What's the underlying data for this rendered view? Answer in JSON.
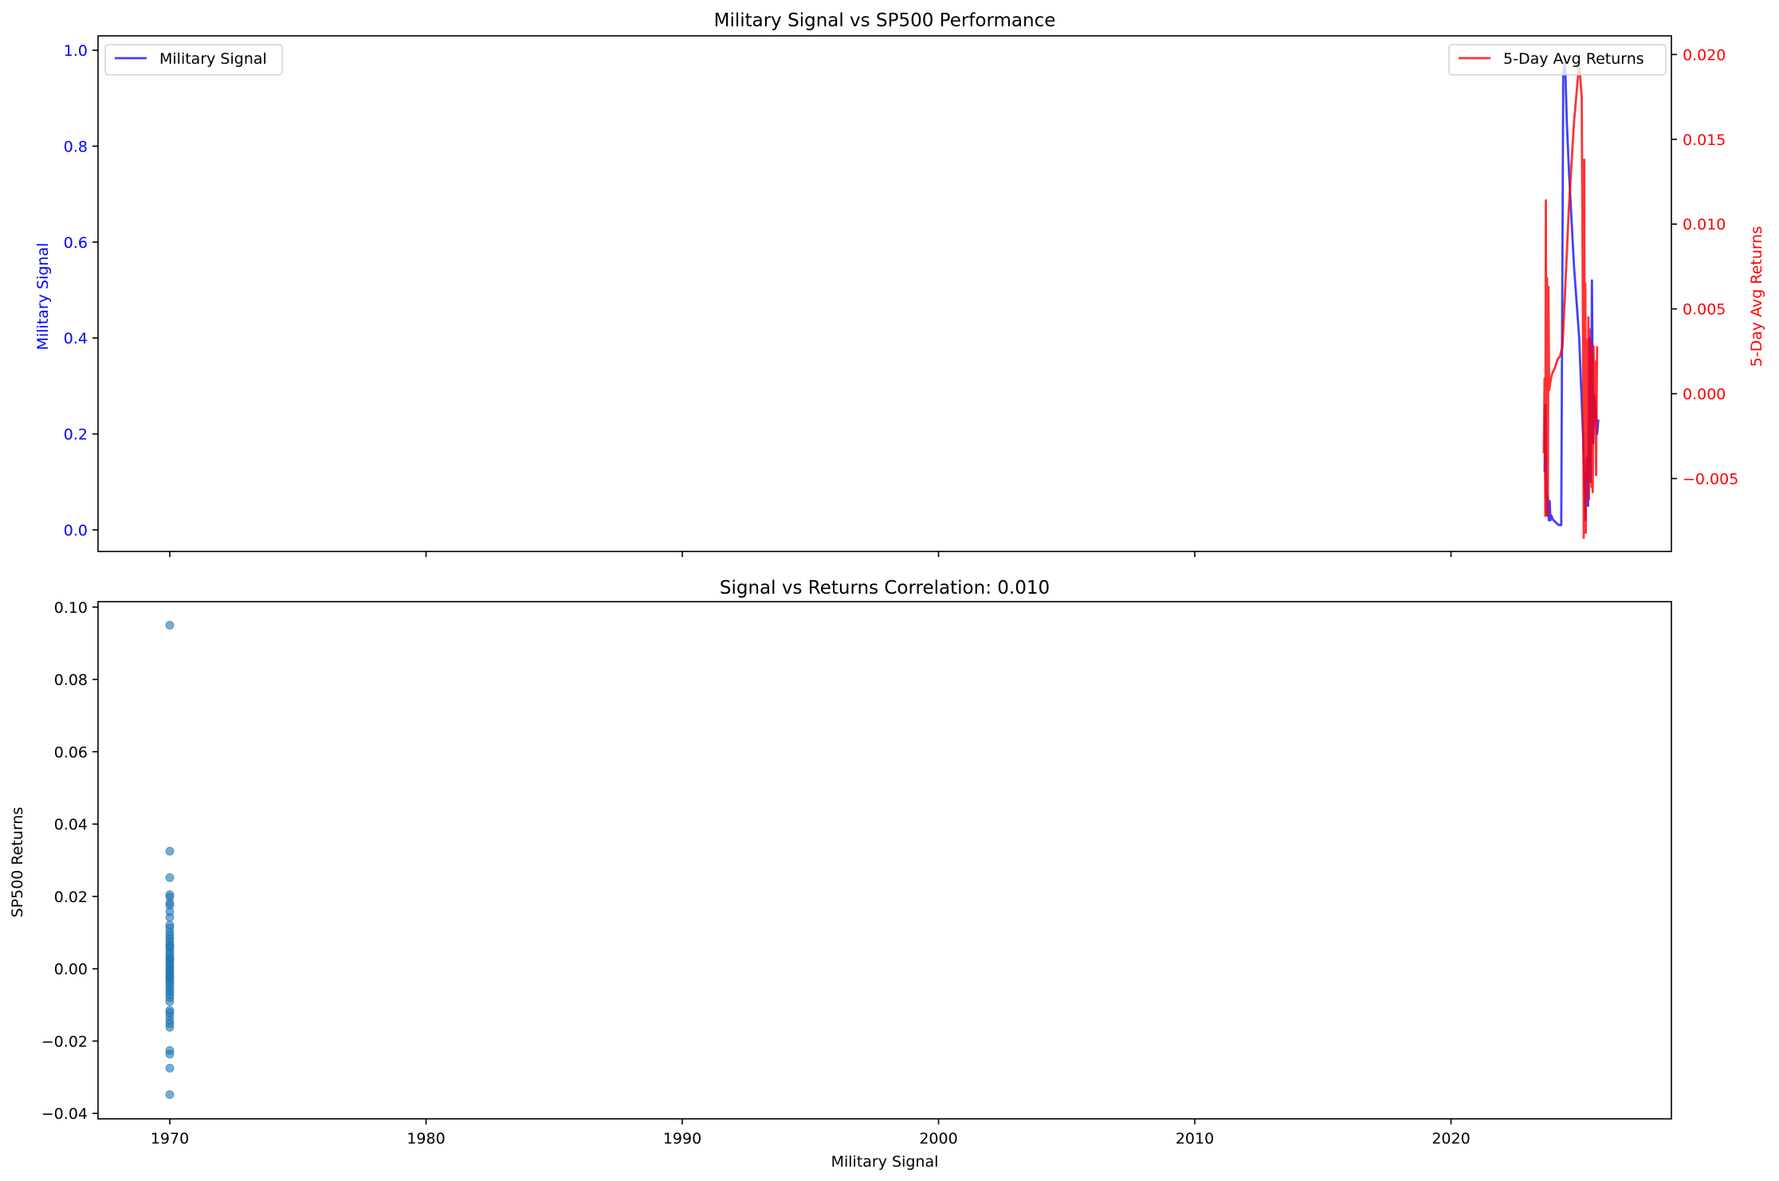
{
  "colors": {
    "military": "#0000ff",
    "returns": "#ff0000",
    "scatter": "#1f77b4",
    "axis": "#000000"
  },
  "chart_data": [
    {
      "type": "line",
      "title": "Military Signal vs SP500 Performance",
      "xlabel": "",
      "ylabel": "Military Signal",
      "y2label": "5-Day Avg Returns",
      "xlim": [
        1967.2,
        2028.6
      ],
      "ylim": [
        -0.045,
        1.03
      ],
      "y2lim": [
        -0.0093,
        0.0211
      ],
      "x_ticks": [
        1970,
        1980,
        1990,
        2000,
        2010,
        2020
      ],
      "y_ticks": [
        0.0,
        0.2,
        0.4,
        0.6,
        0.8,
        1.0
      ],
      "y_tick_labels": [
        "0.0",
        "0.2",
        "0.4",
        "0.6",
        "0.8",
        "1.0"
      ],
      "y2_ticks": [
        -0.005,
        0.0,
        0.005,
        0.01,
        0.015,
        0.02
      ],
      "y2_tick_labels": [
        "−0.005",
        "0.000",
        "0.005",
        "0.010",
        "0.015",
        "0.020"
      ],
      "legend": [
        "Military Signal"
      ],
      "legend2": [
        "5-Day Avg Returns"
      ],
      "legend_position": "upper-left",
      "legend2_position": "upper-right",
      "series": [
        {
          "name": "Military Signal",
          "axis": "left",
          "x": [
            2023.65,
            2023.68,
            2023.72,
            2023.75,
            2023.78,
            2023.82,
            2023.85,
            2023.88,
            2023.92,
            2023.95,
            2024.0,
            2024.1,
            2024.2,
            2024.3,
            2024.38,
            2024.45,
            2024.52,
            2024.6,
            2024.8,
            2025.0,
            2025.15,
            2025.25,
            2025.3,
            2025.35,
            2025.4,
            2025.45,
            2025.5,
            2025.55,
            2025.6,
            2025.65,
            2025.7,
            2025.75
          ],
          "values": [
            0.12,
            0.26,
            0.08,
            0.03,
            0.07,
            0.02,
            0.06,
            0.02,
            0.03,
            0.025,
            0.02,
            0.015,
            0.01,
            0.01,
            0.95,
            0.98,
            0.85,
            0.75,
            0.55,
            0.4,
            0.2,
            0.02,
            0.15,
            0.05,
            0.4,
            0.1,
            0.52,
            0.18,
            0.28,
            0.25,
            0.2,
            0.23
          ]
        },
        {
          "name": "5-Day Avg Returns",
          "axis": "right",
          "x": [
            2023.62,
            2023.65,
            2023.68,
            2023.7,
            2023.72,
            2023.75,
            2023.78,
            2023.8,
            2023.83,
            2023.86,
            2023.9,
            2023.95,
            2024.05,
            2024.15,
            2024.25,
            2024.35,
            2024.45,
            2024.6,
            2024.8,
            2025.0,
            2025.1,
            2025.15,
            2025.18,
            2025.2,
            2025.22,
            2025.24,
            2025.26,
            2025.28,
            2025.3,
            2025.32,
            2025.34,
            2025.36,
            2025.38,
            2025.4,
            2025.42,
            2025.45,
            2025.48,
            2025.5,
            2025.53,
            2025.56,
            2025.6,
            2025.63,
            2025.66,
            2025.7
          ],
          "values": [
            -0.0035,
            0.0009,
            -0.0072,
            0.0114,
            -0.0028,
            0.0068,
            -0.0072,
            0.0063,
            0.0002,
            0.0005,
            0.0009,
            0.0012,
            0.0015,
            0.002,
            0.0022,
            0.0028,
            0.006,
            0.011,
            0.016,
            0.0195,
            0.0175,
            0.0035,
            -0.0085,
            0.0138,
            -0.0068,
            0.0065,
            -0.0082,
            0.0032,
            -0.0051,
            0.0024,
            -0.0035,
            0.0045,
            -0.0062,
            0.0038,
            -0.0045,
            0.0031,
            -0.0055,
            0.0022,
            -0.0058,
            0.0028,
            -0.0018,
            0.0019,
            -0.0048,
            0.0028
          ]
        }
      ]
    },
    {
      "type": "scatter",
      "title": "Signal vs Returns Correlation: 0.010",
      "xlabel": "Military Signal",
      "ylabel": "SP500 Returns",
      "xlim": [
        1967.2,
        2028.6
      ],
      "ylim": [
        -0.0415,
        0.1015
      ],
      "x_ticks": [
        1970,
        1980,
        1990,
        2000,
        2010,
        2020
      ],
      "x_tick_labels": [
        "1970",
        "1980",
        "1990",
        "2000",
        "2010",
        "2020"
      ],
      "y_ticks": [
        -0.04,
        -0.02,
        0.0,
        0.02,
        0.04,
        0.06,
        0.08,
        0.1
      ],
      "y_tick_labels": [
        "−0.04",
        "−0.02",
        "0.00",
        "0.02",
        "0.04",
        "0.06",
        "0.08",
        "0.10"
      ],
      "series": [
        {
          "name": "Returns",
          "x": [
            1970,
            1970,
            1970,
            1970,
            1970,
            1970,
            1970,
            1970,
            1970,
            1970,
            1970,
            1970,
            1970,
            1970,
            1970,
            1970,
            1970,
            1970,
            1970,
            1970,
            1970,
            1970,
            1970,
            1970,
            1970,
            1970,
            1970,
            1970,
            1970,
            1970,
            1970,
            1970,
            1970,
            1970,
            1970,
            1970,
            1970,
            1970,
            1970,
            1970,
            1970,
            1970,
            1970,
            1970,
            1970,
            1970,
            1970,
            1970,
            1970,
            1970
          ],
          "values": [
            0.095,
            0.0325,
            0.0252,
            0.0205,
            0.0198,
            0.0182,
            0.0175,
            0.0158,
            0.0142,
            0.0121,
            0.0113,
            0.0101,
            0.0092,
            0.0083,
            0.0075,
            0.0066,
            0.0058,
            0.0049,
            0.0041,
            0.0033,
            0.0025,
            0.0018,
            0.0011,
            0.0004,
            0.0,
            -0.0006,
            -0.0013,
            -0.002,
            -0.0027,
            -0.0034,
            -0.0041,
            -0.0049,
            -0.0057,
            -0.0064,
            -0.0072,
            -0.008,
            -0.0091,
            -0.0115,
            -0.0121,
            -0.0131,
            -0.0143,
            -0.0152,
            -0.0162,
            -0.0226,
            -0.0236,
            -0.0275,
            -0.0348,
            0.0062,
            -0.0022,
            0.0028
          ]
        }
      ]
    }
  ]
}
